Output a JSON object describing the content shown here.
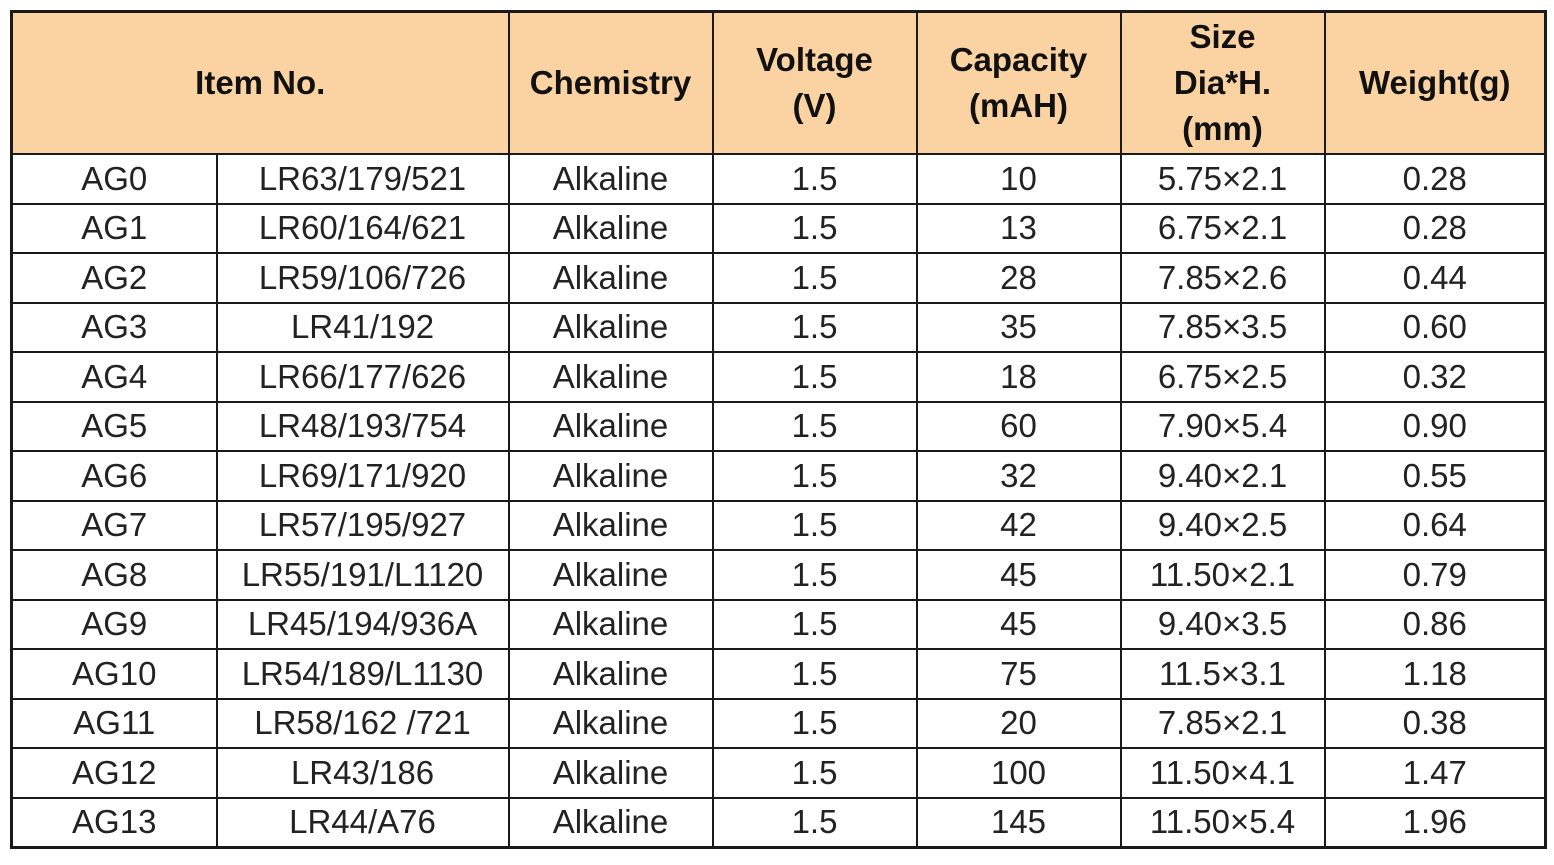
{
  "header": {
    "item_no": "Item No.",
    "chemistry": "Chemistry",
    "voltage": [
      "Voltage",
      "(V)"
    ],
    "capacity": [
      "Capacity",
      "(mAH)"
    ],
    "size": [
      "Size",
      "Dia*H.",
      "(mm)"
    ],
    "weight": "Weight(g)"
  },
  "rows": [
    {
      "ag": "AG0",
      "lr": "LR63/179/521",
      "chem": "Alkaline",
      "v": "1.5",
      "cap": "10",
      "size": "5.75×2.1",
      "wt": "0.28"
    },
    {
      "ag": "AG1",
      "lr": "LR60/164/621",
      "chem": "Alkaline",
      "v": "1.5",
      "cap": "13",
      "size": "6.75×2.1",
      "wt": "0.28"
    },
    {
      "ag": "AG2",
      "lr": "LR59/106/726",
      "chem": "Alkaline",
      "v": "1.5",
      "cap": "28",
      "size": "7.85×2.6",
      "wt": "0.44"
    },
    {
      "ag": "AG3",
      "lr": "LR41/192",
      "chem": "Alkaline",
      "v": "1.5",
      "cap": "35",
      "size": "7.85×3.5",
      "wt": "0.60"
    },
    {
      "ag": "AG4",
      "lr": "LR66/177/626",
      "chem": "Alkaline",
      "v": "1.5",
      "cap": "18",
      "size": "6.75×2.5",
      "wt": "0.32"
    },
    {
      "ag": "AG5",
      "lr": "LR48/193/754",
      "chem": "Alkaline",
      "v": "1.5",
      "cap": "60",
      "size": "7.90×5.4",
      "wt": "0.90"
    },
    {
      "ag": "AG6",
      "lr": "LR69/171/920",
      "chem": "Alkaline",
      "v": "1.5",
      "cap": "32",
      "size": "9.40×2.1",
      "wt": "0.55"
    },
    {
      "ag": "AG7",
      "lr": "LR57/195/927",
      "chem": "Alkaline",
      "v": "1.5",
      "cap": "42",
      "size": "9.40×2.5",
      "wt": "0.64"
    },
    {
      "ag": "AG8",
      "lr": "LR55/191/L1120",
      "chem": "Alkaline",
      "v": "1.5",
      "cap": "45",
      "size": "11.50×2.1",
      "wt": "0.79"
    },
    {
      "ag": "AG9",
      "lr": "LR45/194/936A",
      "chem": "Alkaline",
      "v": "1.5",
      "cap": "45",
      "size": "9.40×3.5",
      "wt": "0.86"
    },
    {
      "ag": "AG10",
      "lr": "LR54/189/L1130",
      "chem": "Alkaline",
      "v": "1.5",
      "cap": "75",
      "size": "11.5×3.1",
      "wt": "1.18"
    },
    {
      "ag": "AG11",
      "lr": "LR58/162 /721",
      "chem": "Alkaline",
      "v": "1.5",
      "cap": "20",
      "size": "7.85×2.1",
      "wt": "0.38"
    },
    {
      "ag": "AG12",
      "lr": "LR43/186",
      "chem": "Alkaline",
      "v": "1.5",
      "cap": "100",
      "size": "11.50×4.1",
      "wt": "1.47"
    },
    {
      "ag": "AG13",
      "lr": "LR44/A76",
      "chem": "Alkaline",
      "v": "1.5",
      "cap": "145",
      "size": "11.50×5.4",
      "wt": "1.96"
    }
  ],
  "colors": {
    "header_bg": "#fbd3a3",
    "border": "#1a1a1a",
    "text": "#222222"
  }
}
